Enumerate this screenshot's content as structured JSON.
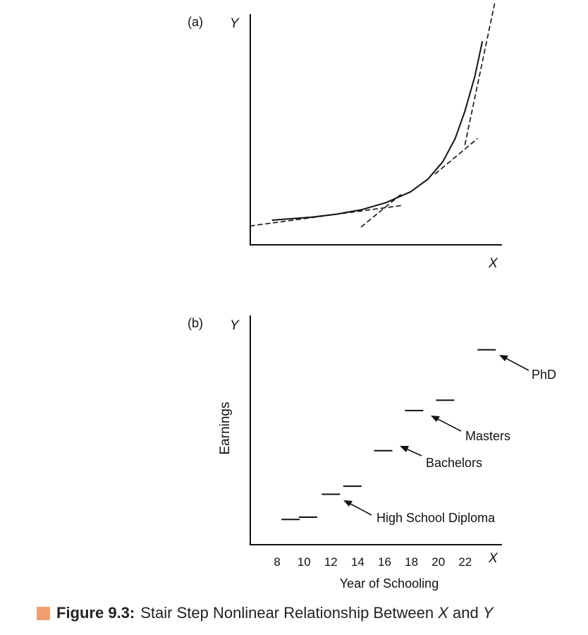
{
  "chart_data": [
    {
      "type": "line",
      "panel_label": "(a)",
      "xlabel": "X",
      "ylabel": "Y",
      "x_ticks": [],
      "y_ticks": [],
      "xlim": [
        0,
        10
      ],
      "ylim": [
        0,
        10
      ],
      "grid": false,
      "series": [
        {
          "style": "solid",
          "x": [
            0.9,
            1.5,
            2.5,
            3.5,
            4.5,
            5.5,
            6.5,
            7.2,
            7.8,
            8.3,
            8.7,
            9.1,
            9.4
          ],
          "y": [
            1.07,
            1.12,
            1.2,
            1.33,
            1.52,
            1.83,
            2.3,
            2.85,
            3.6,
            4.6,
            5.8,
            7.3,
            8.8
          ]
        },
        {
          "style": "dashed",
          "x": [
            0.0,
            6.1
          ],
          "y": [
            0.82,
            1.7
          ]
        },
        {
          "style": "dashed",
          "x": [
            4.5,
            6.1
          ],
          "y": [
            0.78,
            2.18
          ]
        },
        {
          "style": "dashed",
          "x": [
            7.5,
            9.2
          ],
          "y": [
            3.08,
            4.6
          ]
        },
        {
          "style": "dashed",
          "x": [
            8.7,
            9.9
          ],
          "y": [
            4.35,
            10.45
          ]
        }
      ]
    },
    {
      "type": "line",
      "panel_label": "(b)",
      "xlabel": "Year of Schooling",
      "x_axis_letter": "X",
      "ylabel": "Earnings",
      "y_axis_letter": "Y",
      "x_ticks": [
        8,
        10,
        12,
        14,
        16,
        18,
        20,
        22
      ],
      "xlim": [
        6,
        25
      ],
      "ylim": [
        0,
        10
      ],
      "grid": false,
      "steps": [
        {
          "x": 9,
          "y": 1.1
        },
        {
          "x": 10.3,
          "y": 1.2
        },
        {
          "x": 12,
          "y": 2.2
        },
        {
          "x": 13.6,
          "y": 2.55
        },
        {
          "x": 15.9,
          "y": 4.1
        },
        {
          "x": 18.2,
          "y": 5.85
        },
        {
          "x": 20.5,
          "y": 6.3
        },
        {
          "x": 23.6,
          "y": 8.5
        }
      ],
      "annotations": [
        {
          "text": "High School Diploma"
        },
        {
          "text": "Bachelors"
        },
        {
          "text": "Masters"
        },
        {
          "text": "PhD"
        }
      ]
    }
  ],
  "caption": {
    "swatch_color": "#f0a070",
    "figure_label": "Figure 9.3:",
    "text_before": "Stair Step Nonlinear Relationship Between",
    "x_var": "X",
    "text_and": "and",
    "y_var": "Y"
  }
}
